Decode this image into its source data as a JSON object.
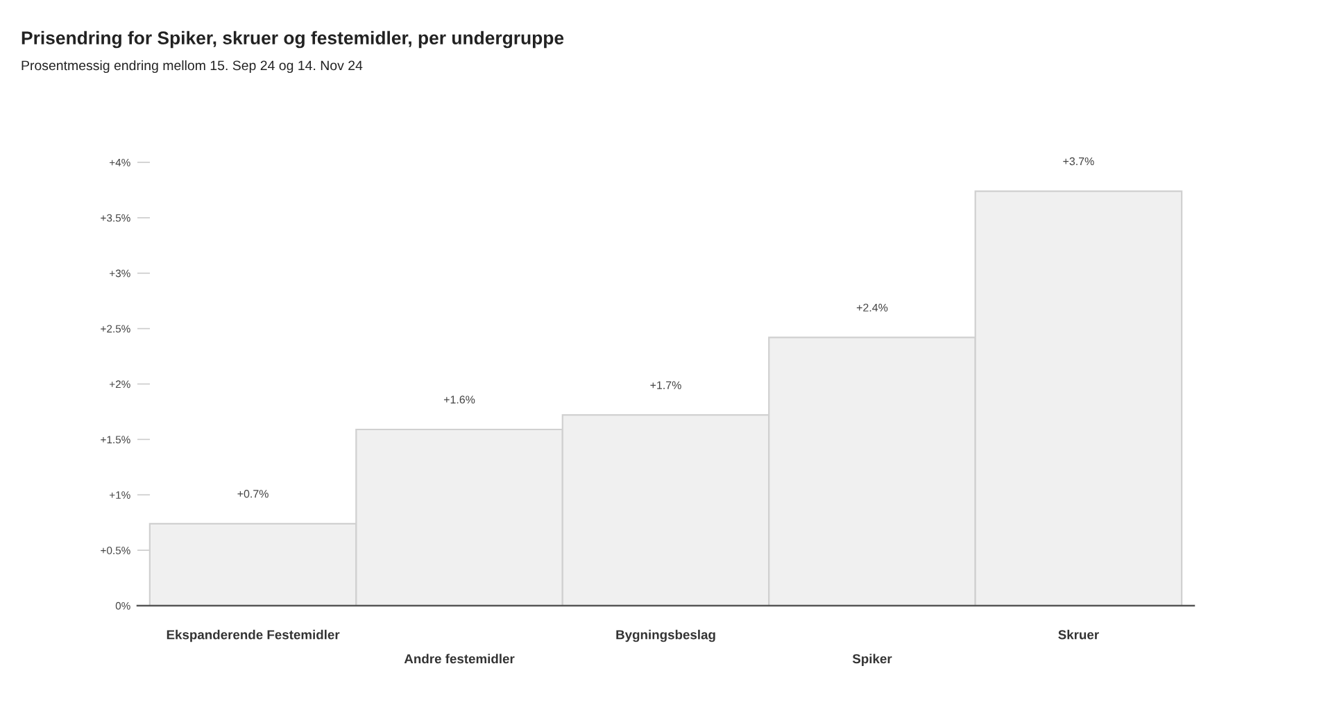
{
  "chart_data": {
    "type": "bar",
    "title": "Prisendring for Spiker, skruer og festemidler, per undergruppe",
    "subtitle": "Prosentmessig endring mellom 15. Sep 24 og 14. Nov 24",
    "categories": [
      "Ekspanderende Festemidler",
      "Andre festemidler",
      "Bygningsbeslag",
      "Spiker",
      "Skruer"
    ],
    "values": [
      0.74,
      1.59,
      1.72,
      2.42,
      3.74
    ],
    "value_labels": [
      "+0.7%",
      "+1.6%",
      "+1.7%",
      "+2.4%",
      "+3.7%"
    ],
    "color": "#f0f0f0",
    "ylim": [
      0,
      4
    ],
    "yticks": [
      {
        "value": 0,
        "label": "0%"
      },
      {
        "value": 0.5,
        "label": "+0.5%"
      },
      {
        "value": 1,
        "label": "+1%"
      },
      {
        "value": 1.5,
        "label": "+1.5%"
      },
      {
        "value": 2,
        "label": "+2%"
      },
      {
        "value": 2.5,
        "label": "+2.5%"
      },
      {
        "value": 3,
        "label": "+3%"
      },
      {
        "value": 3.5,
        "label": "+3.5%"
      },
      {
        "value": 4,
        "label": "+4%"
      }
    ],
    "grid": false
  }
}
